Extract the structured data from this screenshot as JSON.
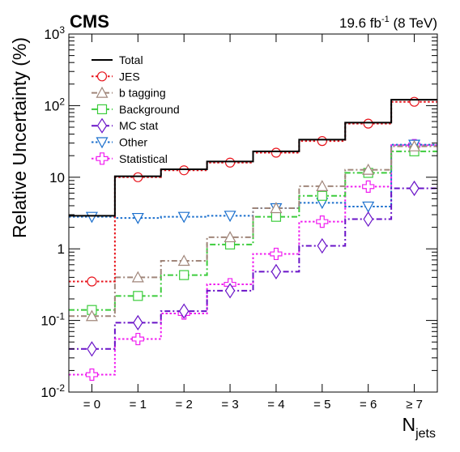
{
  "chart_data": {
    "type": "line",
    "style": "step",
    "experiment_label": "CMS",
    "luminosity_label": "19.6 fb",
    "luminosity_sup": "-1",
    "energy_label": " (8 TeV)",
    "xlabel": "N",
    "xlabel_sub": "jets",
    "ylabel": "Relative Uncertainty (%)",
    "yscale": "log",
    "ylim": [
      0.01,
      1000
    ],
    "y_ticks": [
      {
        "base": "10",
        "exp": "-2",
        "value": 0.01
      },
      {
        "base": "10",
        "exp": "-1",
        "value": 0.1
      },
      {
        "base": "1",
        "exp": "",
        "value": 1
      },
      {
        "base": "10",
        "exp": "",
        "value": 10
      },
      {
        "base": "10",
        "exp": "2",
        "value": 100
      },
      {
        "base": "10",
        "exp": "3",
        "value": 1000
      }
    ],
    "categories": [
      "= 0",
      "= 1",
      "= 2",
      "= 3",
      "= 4",
      "= 5",
      "= 6",
      "≥ 7"
    ],
    "grid": false,
    "legend_position": "top-left",
    "series": [
      {
        "name": "Total",
        "color": "#000000",
        "dash": "solid",
        "marker": "none",
        "values": [
          2.9,
          10.3,
          12.9,
          16.6,
          23.0,
          33.5,
          58.0,
          121.0
        ]
      },
      {
        "name": "JES",
        "color": "#e8141c",
        "dash": "dotted",
        "marker": "circle",
        "values": [
          0.35,
          10.0,
          12.5,
          16.0,
          22.0,
          32.0,
          56.0,
          113.0
        ]
      },
      {
        "name": "b tagging",
        "color": "#a0867a",
        "dash": "dashdot",
        "marker": "triangle-up",
        "values": [
          0.115,
          0.4,
          0.68,
          1.45,
          3.7,
          7.5,
          12.7,
          27.0
        ]
      },
      {
        "name": "Background",
        "color": "#3ccc3c",
        "dash": "dashdot",
        "marker": "square",
        "values": [
          0.14,
          0.22,
          0.43,
          1.15,
          2.8,
          5.5,
          11.5,
          23.0
        ]
      },
      {
        "name": "MC stat",
        "color": "#6a14c8",
        "dash": "dashdot",
        "marker": "diamond",
        "values": [
          0.04,
          0.093,
          0.135,
          0.26,
          0.48,
          1.1,
          2.6,
          7.0
        ]
      },
      {
        "name": "Other",
        "color": "#1a6fcd",
        "dash": "dotted",
        "marker": "triangle-down",
        "values": [
          2.8,
          2.7,
          2.8,
          2.9,
          3.7,
          4.4,
          3.9,
          28.5
        ]
      },
      {
        "name": "Statistical",
        "color": "#f01df0",
        "dash": "dotted",
        "marker": "cross",
        "values": [
          0.0175,
          0.055,
          0.125,
          0.32,
          0.85,
          2.4,
          7.4,
          28.0
        ]
      }
    ]
  }
}
